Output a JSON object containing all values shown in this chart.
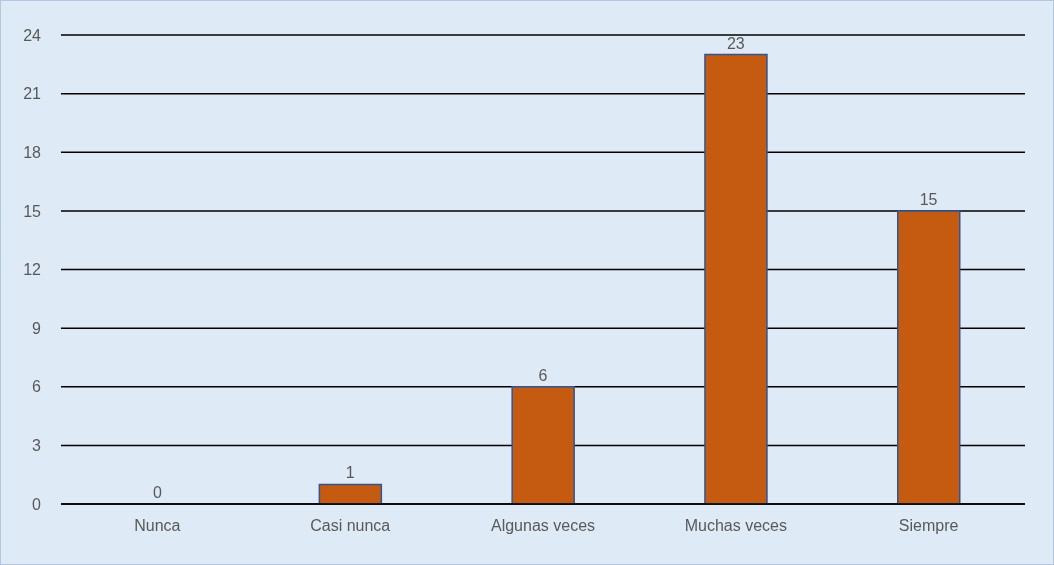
{
  "chart_data": {
    "type": "bar",
    "categories": [
      "Nunca",
      "Casi nunca",
      "Algunas veces",
      "Muchas veces",
      "Siempre"
    ],
    "values": [
      0,
      1,
      6,
      23,
      15
    ],
    "color": "#c55a11",
    "ylim": [
      0,
      24
    ],
    "yticks": [
      0,
      3,
      6,
      9,
      12,
      15,
      18,
      21,
      24
    ],
    "grid": "y",
    "data_labels": true
  }
}
